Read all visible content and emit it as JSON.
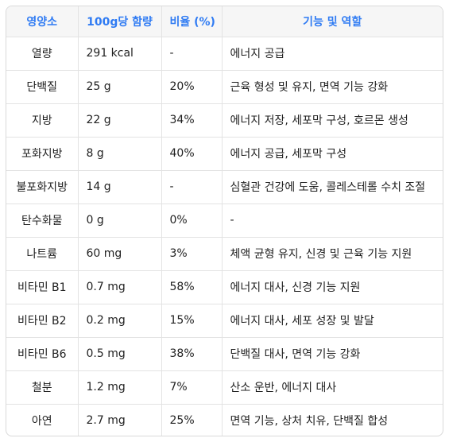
{
  "headers": [
    "영양소",
    "100g당 함량",
    "비율 (%)",
    "기능 및 역할"
  ],
  "rows": [
    {
      "nutrient": "열량",
      "amount": "291 kcal",
      "ratio": "-",
      "role": "에너지 공급"
    },
    {
      "nutrient": "단백질",
      "amount": "25 g",
      "ratio": "20%",
      "role": "근육 형성 및 유지, 면역 기능 강화"
    },
    {
      "nutrient": "지방",
      "amount": "22 g",
      "ratio": "34%",
      "role": "에너지 저장, 세포막 구성, 호르몬 생성"
    },
    {
      "nutrient": "포화지방",
      "amount": "8 g",
      "ratio": "40%",
      "role": "에너지 공급, 세포막 구성"
    },
    {
      "nutrient": "불포화지방",
      "amount": "14 g",
      "ratio": "-",
      "role": "심혈관 건강에 도움, 콜레스테롤 수치 조절"
    },
    {
      "nutrient": "탄수화물",
      "amount": "0 g",
      "ratio": "0%",
      "role": "-"
    },
    {
      "nutrient": "나트륨",
      "amount": "60 mg",
      "ratio": "3%",
      "role": "체액 균형 유지, 신경 및 근육 기능 지원"
    },
    {
      "nutrient": "비타민 B1",
      "amount": "0.7 mg",
      "ratio": "58%",
      "role": "에너지 대사, 신경 기능 지원"
    },
    {
      "nutrient": "비타민 B2",
      "amount": "0.2 mg",
      "ratio": "15%",
      "role": "에너지 대사, 세포 성장 및 발달"
    },
    {
      "nutrient": "비타민 B6",
      "amount": "0.5 mg",
      "ratio": "38%",
      "role": "단백질 대사, 면역 기능 강화"
    },
    {
      "nutrient": "철분",
      "amount": "1.2 mg",
      "ratio": "7%",
      "role": "산소 운반, 에너지 대사"
    },
    {
      "nutrient": "아연",
      "amount": "2.7 mg",
      "ratio": "25%",
      "role": "면역 기능, 상처 치유, 단백질 합성"
    }
  ]
}
